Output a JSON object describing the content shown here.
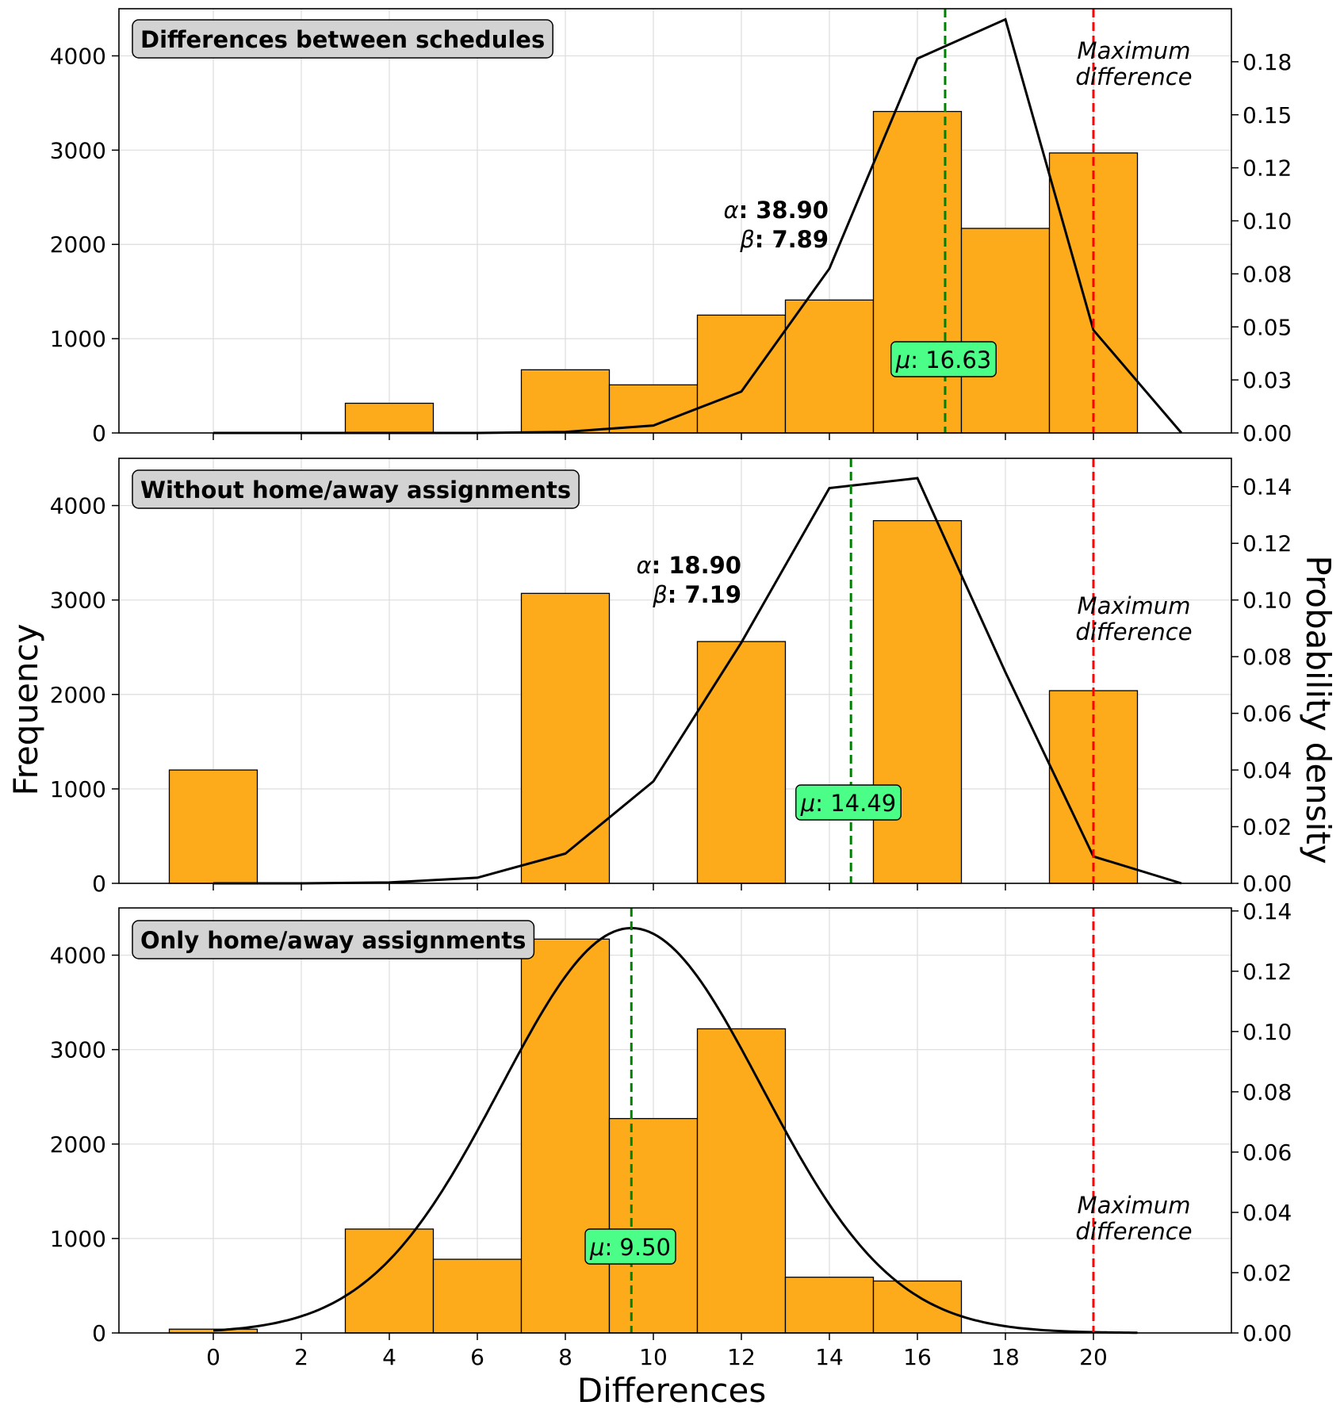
{
  "figure": {
    "xlabel": "Differences",
    "ylabel_left": "Frequency",
    "ylabel_right": "Probability density",
    "x_ticks": [
      0,
      2,
      4,
      6,
      8,
      10,
      12,
      14,
      16,
      18,
      20
    ]
  },
  "colors": {
    "bar_fill": "#fdab1b",
    "bar_edge": "#000000",
    "mean_line": "#008000",
    "max_line": "#ff0000",
    "density_line": "#000000",
    "title_box": "#d3d3d3",
    "mu_box": "#4bfe87",
    "grid": "#dddddd"
  },
  "chart_data": [
    {
      "type": "bar",
      "title": "Differences between schedules",
      "bars": [
        {
          "x": 0,
          "value": 0
        },
        {
          "x": 4,
          "value": 315
        },
        {
          "x": 8,
          "value": 670
        },
        {
          "x": 10,
          "value": 510
        },
        {
          "x": 12,
          "value": 1250
        },
        {
          "x": 14,
          "value": 1410
        },
        {
          "x": 16,
          "value": 3410
        },
        {
          "x": 18,
          "value": 2170
        },
        {
          "x": 20,
          "value": 2970
        }
      ],
      "bar_width": 2,
      "y_ticks": [
        0,
        1000,
        2000,
        3000,
        4000
      ],
      "ylim": [
        0,
        4500
      ],
      "y2_ticks": [
        "0.00",
        "0.03",
        "0.05",
        "0.08",
        "0.10",
        "0.12",
        "0.15",
        "0.18"
      ],
      "y2_tick_values": [
        0,
        0.025,
        0.05,
        0.075,
        0.1,
        0.125,
        0.15,
        0.175
      ],
      "y2lim": [
        0,
        0.2
      ],
      "density": {
        "style": "polyline",
        "x": [
          0,
          2,
          4,
          6,
          8,
          10,
          12,
          14,
          16,
          18,
          20,
          22
        ],
        "y": [
          0,
          0,
          0,
          0,
          0.0005,
          0.0035,
          0.0195,
          0.0775,
          0.1765,
          0.195,
          0.0485,
          0
        ]
      },
      "alpha_label": "α",
      "alpha_value": ": 38.90",
      "beta_label": "β",
      "beta_value": ": 7.89",
      "mu_label": "μ",
      "mu_value": ": 16.63",
      "mean": 16.63,
      "max_label_line1": "Maximum",
      "max_label_line2": "difference",
      "max_x": 20
    },
    {
      "type": "bar",
      "title": "Without home/away assignments",
      "bars": [
        {
          "x": 0,
          "value": 1200
        },
        {
          "x": 8,
          "value": 3070
        },
        {
          "x": 12,
          "value": 2560
        },
        {
          "x": 16,
          "value": 3840
        },
        {
          "x": 20,
          "value": 2040
        }
      ],
      "bar_width": 2,
      "y_ticks": [
        0,
        1000,
        2000,
        3000,
        4000
      ],
      "ylim": [
        0,
        4500
      ],
      "y2_ticks": [
        "0.00",
        "0.02",
        "0.04",
        "0.06",
        "0.08",
        "0.10",
        "0.12",
        "0.14"
      ],
      "y2_tick_values": [
        0,
        0.02,
        0.04,
        0.06,
        0.08,
        0.1,
        0.12,
        0.14
      ],
      "y2lim": [
        0,
        0.15
      ],
      "density": {
        "style": "polyline",
        "x": [
          0,
          2,
          4,
          6,
          8,
          10,
          12,
          14,
          16,
          18,
          20,
          22
        ],
        "y": [
          0,
          0,
          0.0003,
          0.002,
          0.0105,
          0.036,
          0.085,
          0.1395,
          0.143,
          0.0745,
          0.0095,
          0
        ]
      },
      "alpha_label": "α",
      "alpha_value": ": 18.90",
      "beta_label": "β",
      "beta_value": ": 7.19",
      "mu_label": "μ",
      "mu_value": ": 14.49",
      "mean": 14.49,
      "max_label_line1": "Maximum",
      "max_label_line2": "difference",
      "max_x": 20
    },
    {
      "type": "bar",
      "title": "Only home/away assignments",
      "bars": [
        {
          "x": 0,
          "value": 40
        },
        {
          "x": 4,
          "value": 1100
        },
        {
          "x": 6,
          "value": 780
        },
        {
          "x": 8,
          "value": 4170
        },
        {
          "x": 10,
          "value": 2270
        },
        {
          "x": 12,
          "value": 3220
        },
        {
          "x": 14,
          "value": 590
        },
        {
          "x": 16,
          "value": 550
        }
      ],
      "bar_width": 2,
      "y_ticks": [
        0,
        1000,
        2000,
        3000,
        4000
      ],
      "ylim": [
        0,
        4500
      ],
      "y2_ticks": [
        "0.00",
        "0.02",
        "0.04",
        "0.06",
        "0.08",
        "0.10",
        "0.12",
        "0.14"
      ],
      "y2_tick_values": [
        0,
        0.02,
        0.04,
        0.06,
        0.08,
        0.1,
        0.12,
        0.14
      ],
      "y2lim": [
        0,
        0.141
      ],
      "density": {
        "style": "normal",
        "mean": 9.5,
        "sd": 2.97,
        "x_range": [
          0,
          21
        ]
      },
      "mu_label": "μ",
      "mu_value": ": 9.50",
      "mean": 9.5,
      "max_label_line1": "Maximum",
      "max_label_line2": "difference",
      "max_x": 20
    }
  ]
}
